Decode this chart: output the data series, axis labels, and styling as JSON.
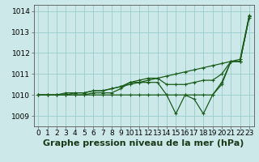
{
  "title": "Graphe pression niveau de la mer (hPa)",
  "xlim": [
    -0.5,
    23.5
  ],
  "ylim": [
    1008.5,
    1014.3
  ],
  "yticks": [
    1009,
    1010,
    1011,
    1012,
    1013,
    1014
  ],
  "xticks": [
    0,
    1,
    2,
    3,
    4,
    5,
    6,
    7,
    8,
    9,
    10,
    11,
    12,
    13,
    14,
    15,
    16,
    17,
    18,
    19,
    20,
    21,
    22,
    23
  ],
  "bg_color": "#cce8e8",
  "grid_color": "#99cccc",
  "line_color": "#1a5c1a",
  "series": [
    [
      1010.0,
      1010.0,
      1010.0,
      1010.1,
      1010.1,
      1010.1,
      1010.2,
      1010.2,
      1010.3,
      1010.4,
      1010.5,
      1010.6,
      1010.7,
      1010.8,
      1010.9,
      1011.0,
      1011.1,
      1011.2,
      1011.3,
      1011.4,
      1011.5,
      1011.6,
      1011.7,
      1013.8
    ],
    [
      1010.0,
      1010.0,
      1010.0,
      1010.0,
      1010.1,
      1010.1,
      1010.2,
      1010.2,
      1010.3,
      1010.4,
      1010.6,
      1010.7,
      1010.8,
      1010.8,
      1010.5,
      1010.5,
      1010.5,
      1010.6,
      1010.7,
      1010.7,
      1011.0,
      1011.6,
      1011.6,
      1013.75
    ],
    [
      1010.0,
      1010.0,
      1010.0,
      1010.0,
      1010.0,
      1010.0,
      1010.1,
      1010.1,
      1010.1,
      1010.3,
      1010.6,
      1010.6,
      1010.6,
      1010.6,
      1010.0,
      1010.0,
      1010.0,
      1010.0,
      1010.0,
      1010.0,
      1010.5,
      1011.6,
      1011.6,
      1013.7
    ],
    [
      1010.0,
      1010.0,
      1010.0,
      1010.0,
      1010.0,
      1010.0,
      1010.0,
      1010.0,
      1010.0,
      1010.0,
      1010.0,
      1010.0,
      1010.0,
      1010.0,
      1010.0,
      1009.1,
      1010.0,
      1009.8,
      1009.1,
      1010.0,
      1010.6,
      1011.6,
      1011.6,
      1013.75
    ]
  ],
  "marker_size": 3.5,
  "line_width": 0.9,
  "title_fontsize": 8,
  "tick_fontsize": 6.5
}
